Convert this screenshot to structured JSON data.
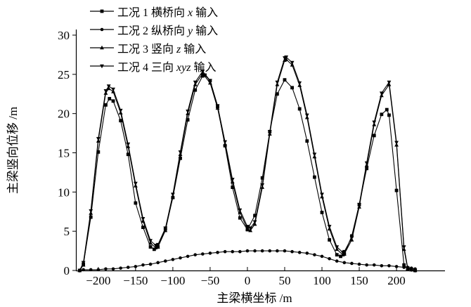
{
  "figure": {
    "background": "#ffffff",
    "axis_color": "#000000",
    "series_color": "#000000"
  },
  "chart_data": {
    "type": "line",
    "title": "",
    "xlabel": "主梁横坐标 /m",
    "ylabel": "主梁竖向位移 /m",
    "xlim": [
      -230,
      265
    ],
    "ylim": [
      0,
      31
    ],
    "grid": false,
    "legend_position": "top-left",
    "xticks": [
      {
        "v": -200,
        "label": "−200"
      },
      {
        "v": -150,
        "label": "−150"
      },
      {
        "v": -100,
        "label": "−100"
      },
      {
        "v": -50,
        "label": "−50"
      },
      {
        "v": 0,
        "label": "0"
      },
      {
        "v": 50,
        "label": "50"
      },
      {
        "v": 100,
        "label": "100"
      },
      {
        "v": 150,
        "label": "150"
      },
      {
        "v": 200,
        "label": "200"
      }
    ],
    "yticks": [
      {
        "v": 0,
        "label": "0"
      },
      {
        "v": 5,
        "label": "5"
      },
      {
        "v": 10,
        "label": "10"
      },
      {
        "v": 15,
        "label": "15"
      },
      {
        "v": 20,
        "label": "20"
      },
      {
        "v": 25,
        "label": "25"
      },
      {
        "v": 30,
        "label": "30"
      }
    ],
    "series": [
      {
        "name": "工况 1 横桥向 x 输入",
        "label_prefix": "工况 1 横桥向 ",
        "label_var": "x",
        "label_suffix": " 输入",
        "marker": "square",
        "color": "#000000",
        "points": [
          [
            -225,
            0
          ],
          [
            -220,
            0.8
          ],
          [
            -210,
            6.8
          ],
          [
            -200,
            15.1
          ],
          [
            -190,
            21.1
          ],
          [
            -185,
            21.9
          ],
          [
            -180,
            21.6
          ],
          [
            -170,
            19.1
          ],
          [
            -160,
            14.8
          ],
          [
            -150,
            8.6
          ],
          [
            -140,
            5.5
          ],
          [
            -130,
            3
          ],
          [
            -125,
            2.7
          ],
          [
            -120,
            3
          ],
          [
            -110,
            5.3
          ],
          [
            -100,
            9.3
          ],
          [
            -90,
            14.3
          ],
          [
            -80,
            19.2
          ],
          [
            -70,
            23
          ],
          [
            -60,
            24.8
          ],
          [
            -57,
            24.9
          ],
          [
            -50,
            24.2
          ],
          [
            -40,
            20.9
          ],
          [
            -30,
            15.9
          ],
          [
            -20,
            10.6
          ],
          [
            -10,
            6.7
          ],
          [
            0,
            5.2
          ],
          [
            10,
            7
          ],
          [
            20,
            11.8
          ],
          [
            30,
            17.7
          ],
          [
            40,
            22.5
          ],
          [
            50,
            24.3
          ],
          [
            60,
            23.3
          ],
          [
            70,
            20.6
          ],
          [
            80,
            16.5
          ],
          [
            90,
            11.9
          ],
          [
            100,
            7.4
          ],
          [
            110,
            3.9
          ],
          [
            120,
            2
          ],
          [
            125,
            1.8
          ],
          [
            130,
            2.1
          ],
          [
            140,
            4.4
          ],
          [
            150,
            8.4
          ],
          [
            160,
            13
          ],
          [
            170,
            17.2
          ],
          [
            180,
            19.9
          ],
          [
            187,
            20.5
          ],
          [
            190,
            19.8
          ],
          [
            200,
            10.2
          ],
          [
            210,
            0.7
          ],
          [
            215,
            0.2
          ],
          [
            220,
            0.1
          ],
          [
            225,
            0
          ]
        ]
      },
      {
        "name": "工况 2 纵桥向 y 输入",
        "label_prefix": "工况 2 纵桥向 ",
        "label_var": "y",
        "label_suffix": " 输入",
        "marker": "circle",
        "color": "#000000",
        "points": [
          [
            -225,
            0
          ],
          [
            -220,
            0.1
          ],
          [
            -210,
            0.1
          ],
          [
            -200,
            0.1
          ],
          [
            -190,
            0.2
          ],
          [
            -180,
            0.2
          ],
          [
            -170,
            0.3
          ],
          [
            -160,
            0.4
          ],
          [
            -150,
            0.5
          ],
          [
            -140,
            0.7
          ],
          [
            -130,
            0.8
          ],
          [
            -120,
            1
          ],
          [
            -110,
            1.2
          ],
          [
            -100,
            1.4
          ],
          [
            -90,
            1.6
          ],
          [
            -80,
            1.8
          ],
          [
            -70,
            2
          ],
          [
            -60,
            2.1
          ],
          [
            -50,
            2.2
          ],
          [
            -40,
            2.3
          ],
          [
            -30,
            2.4
          ],
          [
            -20,
            2.4
          ],
          [
            -10,
            2.4
          ],
          [
            0,
            2.5
          ],
          [
            10,
            2.5
          ],
          [
            20,
            2.5
          ],
          [
            30,
            2.5
          ],
          [
            40,
            2.5
          ],
          [
            50,
            2.5
          ],
          [
            60,
            2.4
          ],
          [
            70,
            2.3
          ],
          [
            80,
            2.2
          ],
          [
            90,
            2
          ],
          [
            100,
            1.8
          ],
          [
            110,
            1.5
          ],
          [
            120,
            1.2
          ],
          [
            130,
            1
          ],
          [
            140,
            0.9
          ],
          [
            150,
            0.8
          ],
          [
            160,
            0.7
          ],
          [
            170,
            0.7
          ],
          [
            180,
            0.6
          ],
          [
            190,
            0.6
          ],
          [
            200,
            0.5
          ],
          [
            210,
            0.4
          ],
          [
            215,
            0.4
          ],
          [
            220,
            0.3
          ],
          [
            225,
            0.2
          ]
        ]
      },
      {
        "name": "工况 3 竖向 z 输入",
        "label_prefix": "工况 3 竖向 ",
        "label_var": "z",
        "label_suffix": " 输入",
        "marker": "triangle-up",
        "color": "#000000",
        "points": [
          [
            -225,
            0
          ],
          [
            -220,
            0.7
          ],
          [
            -210,
            7.3
          ],
          [
            -200,
            16.5
          ],
          [
            -190,
            22.6
          ],
          [
            -186,
            23.2
          ],
          [
            -180,
            22.8
          ],
          [
            -170,
            20.1
          ],
          [
            -160,
            15.8
          ],
          [
            -150,
            10.8
          ],
          [
            -140,
            6.3
          ],
          [
            -130,
            3.5
          ],
          [
            -123,
            2.9
          ],
          [
            -120,
            3
          ],
          [
            -110,
            5.1
          ],
          [
            -100,
            9.4
          ],
          [
            -90,
            14.8
          ],
          [
            -80,
            20
          ],
          [
            -70,
            23.7
          ],
          [
            -60,
            25.1
          ],
          [
            -50,
            23.9
          ],
          [
            -40,
            20.7
          ],
          [
            -30,
            16.1
          ],
          [
            -20,
            11.3
          ],
          [
            -10,
            7.4
          ],
          [
            0,
            5.3
          ],
          [
            4,
            5.1
          ],
          [
            10,
            5.9
          ],
          [
            20,
            10.6
          ],
          [
            30,
            17.4
          ],
          [
            40,
            23.7
          ],
          [
            50,
            26.8
          ],
          [
            52,
            26.9
          ],
          [
            60,
            26.2
          ],
          [
            70,
            23.6
          ],
          [
            80,
            19.5
          ],
          [
            90,
            14.5
          ],
          [
            100,
            9.4
          ],
          [
            110,
            5.3
          ],
          [
            120,
            2.7
          ],
          [
            128,
            2
          ],
          [
            130,
            2.1
          ],
          [
            140,
            3.9
          ],
          [
            150,
            8.1
          ],
          [
            160,
            13.4
          ],
          [
            170,
            18.6
          ],
          [
            180,
            22.3
          ],
          [
            190,
            23.7
          ],
          [
            200,
            16
          ],
          [
            210,
            2.7
          ],
          [
            215,
            0.2
          ],
          [
            220,
            0.1
          ],
          [
            225,
            0
          ]
        ]
      },
      {
        "name": "工况 4 三向 xyz 输入",
        "label_prefix": "工况 4 三向 ",
        "label_var": "xyz",
        "label_suffix": " 输入",
        "marker": "triangle-down",
        "color": "#000000",
        "points": [
          [
            -225,
            0
          ],
          [
            -220,
            1
          ],
          [
            -210,
            7.6
          ],
          [
            -200,
            16.8
          ],
          [
            -190,
            22.9
          ],
          [
            -186,
            23.5
          ],
          [
            -180,
            23.1
          ],
          [
            -170,
            20.4
          ],
          [
            -160,
            16.1
          ],
          [
            -150,
            11.1
          ],
          [
            -140,
            6.6
          ],
          [
            -130,
            3.8
          ],
          [
            -123,
            3.2
          ],
          [
            -120,
            3.3
          ],
          [
            -110,
            5.4
          ],
          [
            -100,
            9.7
          ],
          [
            -90,
            15.1
          ],
          [
            -80,
            20.3
          ],
          [
            -70,
            24
          ],
          [
            -60,
            25.4
          ],
          [
            -50,
            24.2
          ],
          [
            -40,
            21
          ],
          [
            -30,
            16.4
          ],
          [
            -20,
            11.6
          ],
          [
            -10,
            7.7
          ],
          [
            0,
            5.6
          ],
          [
            4,
            5.4
          ],
          [
            10,
            6.2
          ],
          [
            20,
            10.9
          ],
          [
            30,
            17.7
          ],
          [
            40,
            24
          ],
          [
            50,
            27.1
          ],
          [
            52,
            27.2
          ],
          [
            60,
            26.5
          ],
          [
            70,
            23.9
          ],
          [
            80,
            19.8
          ],
          [
            90,
            14.8
          ],
          [
            100,
            9.7
          ],
          [
            110,
            5.6
          ],
          [
            120,
            3
          ],
          [
            128,
            2.3
          ],
          [
            130,
            2.4
          ],
          [
            140,
            4.2
          ],
          [
            150,
            8.4
          ],
          [
            160,
            13.7
          ],
          [
            170,
            18.9
          ],
          [
            180,
            22.6
          ],
          [
            190,
            24
          ],
          [
            200,
            16.3
          ],
          [
            210,
            3
          ],
          [
            215,
            0.3
          ],
          [
            220,
            0.1
          ],
          [
            225,
            0
          ]
        ]
      }
    ]
  }
}
